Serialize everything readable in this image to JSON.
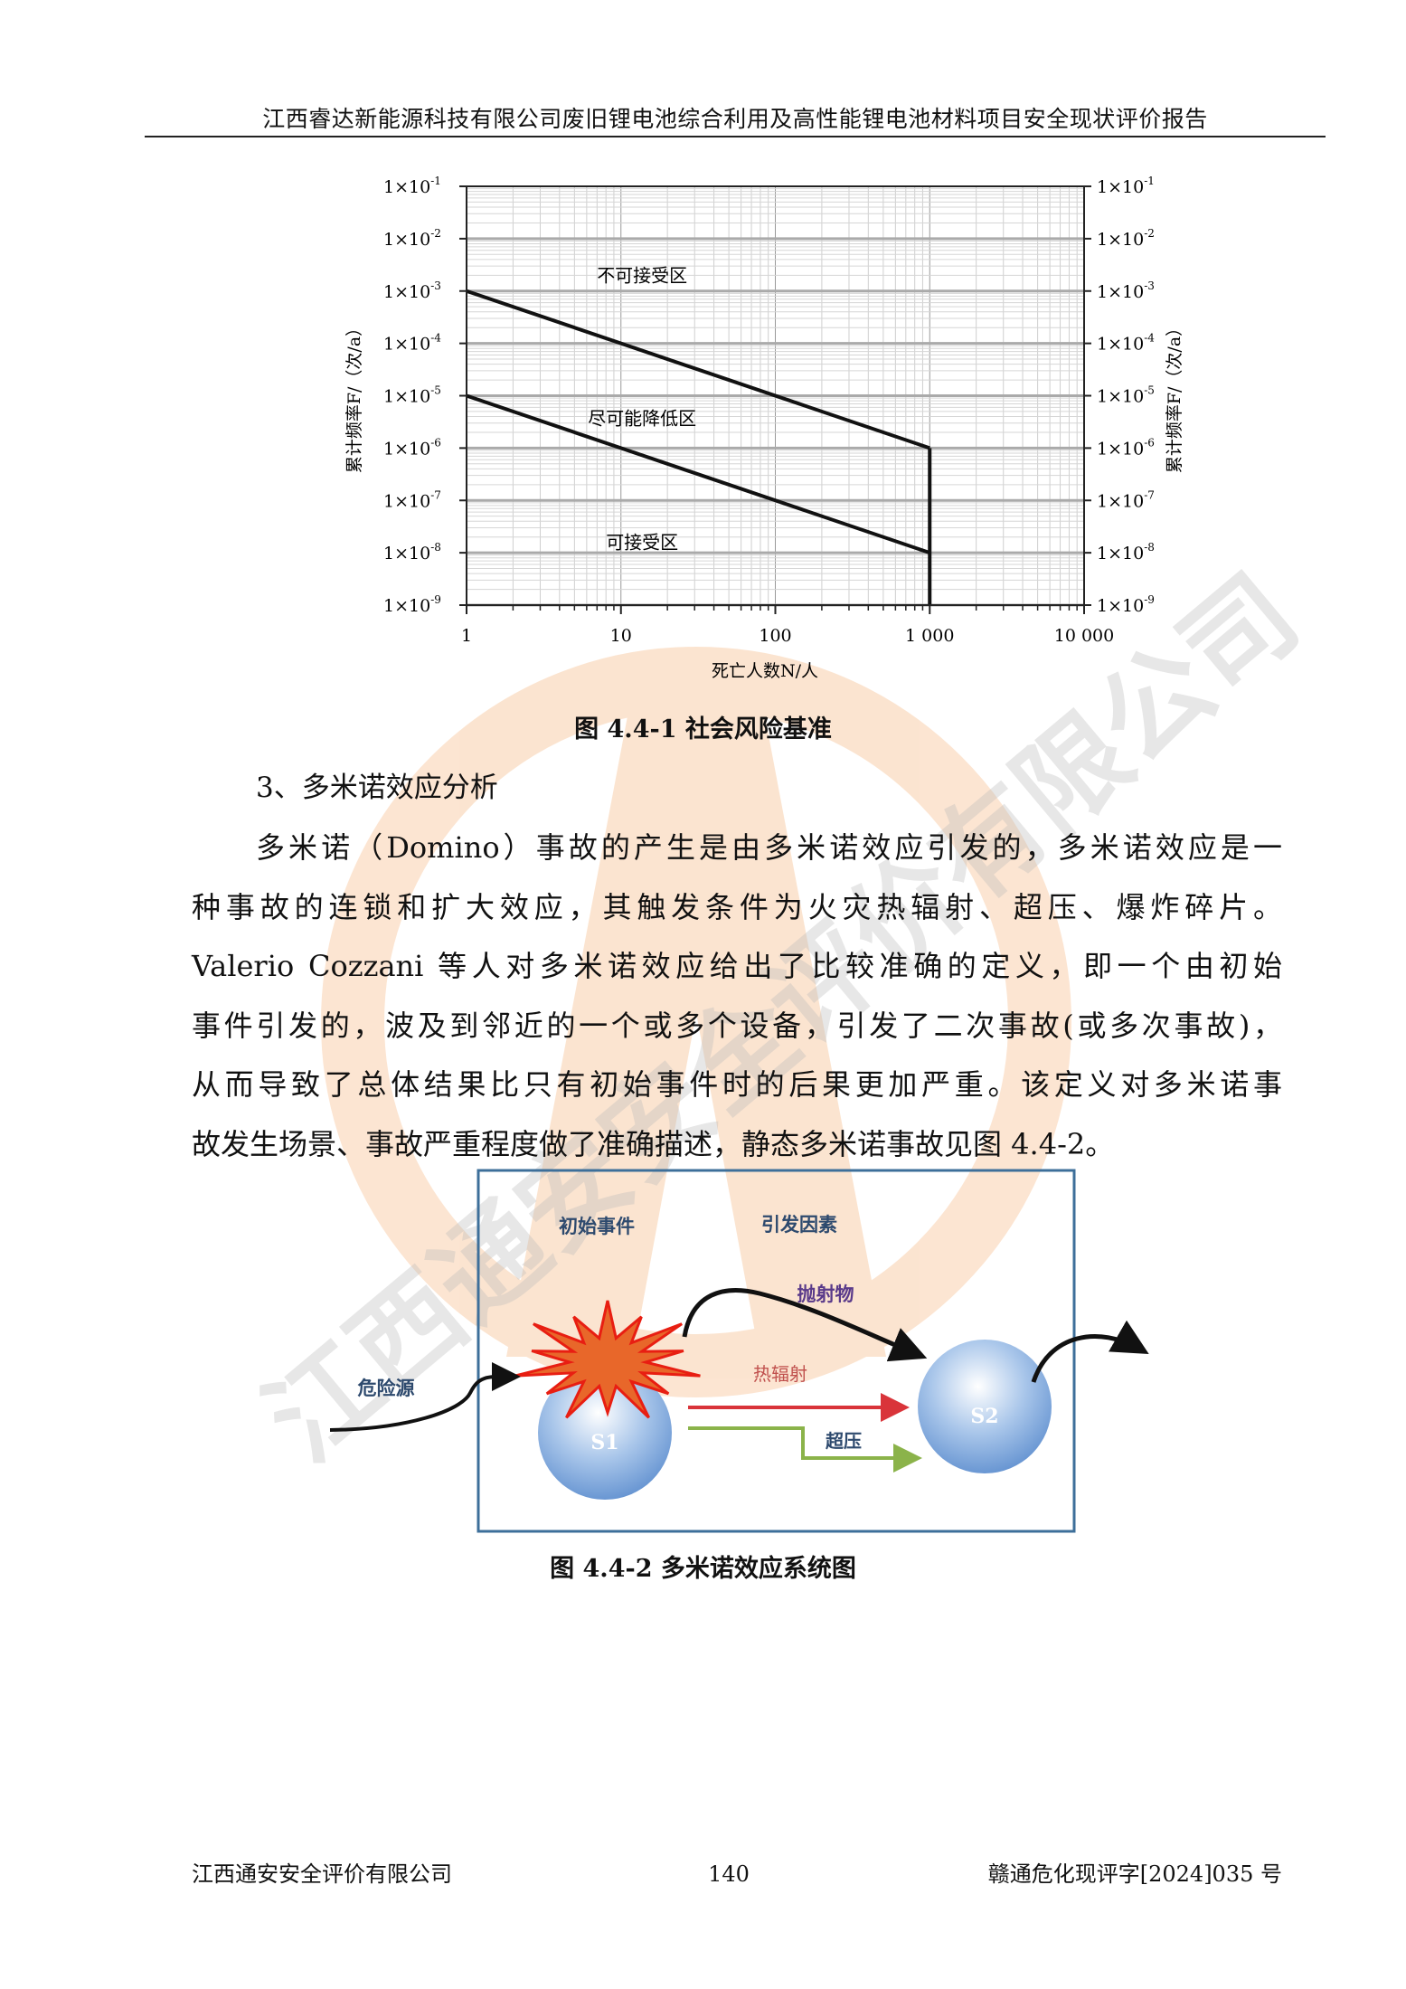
{
  "header": {
    "title": "江西睿达新能源科技有限公司废旧锂电池综合利用及高性能锂电池材料项目安全现状评价报告"
  },
  "chart_data": {
    "type": "line",
    "xscale": "log",
    "yscale": "log",
    "xlim": [
      1,
      10000
    ],
    "ylim": [
      1e-09,
      0.1
    ],
    "xlabel": "死亡人数N/人",
    "ylabel": "累计频率F/（次/a）",
    "ylabel_right": "累计频率F/（次/a）",
    "x_ticks": [
      {
        "value": 1,
        "label": "1"
      },
      {
        "value": 10,
        "label": "10"
      },
      {
        "value": 100,
        "label": "100"
      },
      {
        "value": 1000,
        "label": "1 000"
      },
      {
        "value": 10000,
        "label": "10 000"
      }
    ],
    "y_ticks": [
      {
        "value": 0.1,
        "base": "1×10",
        "exp": "-1"
      },
      {
        "value": 0.01,
        "base": "1×10",
        "exp": "-2"
      },
      {
        "value": 0.001,
        "base": "1×10",
        "exp": "-3"
      },
      {
        "value": 0.0001,
        "base": "1×10",
        "exp": "-4"
      },
      {
        "value": 1e-05,
        "base": "1×10",
        "exp": "-5"
      },
      {
        "value": 1e-06,
        "base": "1×10",
        "exp": "-6"
      },
      {
        "value": 1e-07,
        "base": "1×10",
        "exp": "-7"
      },
      {
        "value": 1e-08,
        "base": "1×10",
        "exp": "-8"
      },
      {
        "value": 1e-09,
        "base": "1×10",
        "exp": "-9"
      }
    ],
    "grid": true,
    "series": [
      {
        "points": [
          [
            1,
            0.001
          ],
          [
            1000,
            1e-06
          ]
        ]
      },
      {
        "points": [
          [
            1,
            1e-05
          ],
          [
            1000,
            1e-08
          ]
        ]
      },
      {
        "points": [
          [
            1000,
            1e-06
          ],
          [
            1000,
            1e-09
          ]
        ]
      }
    ],
    "regions": [
      {
        "label": "不可接受区",
        "x": 8,
        "y": 0.0015
      },
      {
        "label": "尽可能降低区",
        "x": 8,
        "y": 2.8e-06
      },
      {
        "label": "可接受区",
        "x": 8,
        "y": 1.2e-08
      }
    ]
  },
  "figure1_caption": "图 4.4-1   社会风险基准",
  "section_heading": "3、多米诺效应分析",
  "paragraph_lines": [
    "多米诺（Domino）事故的产生是由多米诺效应引发的，多米诺效应是一",
    "种事故的连锁和扩大效应，其触发条件为火灾热辐射、超压、爆炸碎片。",
    "Valerio Cozzani 等人对多米诺效应给出了比较准确的定义，即一个由初始",
    "事件引发的，波及到邻近的一个或多个设备，引发了二次事故(或多次事故)，",
    "从而导致了总体结果比只有初始事件时的后果更加严重。该定义对多米诺事",
    "故发生场景、事故严重程度做了准确描述，静态多米诺事故见图 4.4-2。"
  ],
  "diagram": {
    "initial_event": "初始事件",
    "trigger_factors": "引发因素",
    "projectile": "抛射物",
    "thermal_radiation": "热辐射",
    "overpressure": "超压",
    "hazard_source": "危险源",
    "s1": "S1",
    "s2": "S2",
    "colors": {
      "frame": "#3d6f9a",
      "burst": "#e8672a",
      "burst_edge": "#e81e12",
      "sphere": "#6f9fd8",
      "thermal_arrow": "#d9343a",
      "overpressure_arrow": "#8bb34a",
      "projectile_text": "#5a3a8a",
      "label": "#2e4a6e"
    }
  },
  "figure2_caption": "图 4.4-2   多米诺效应系统图",
  "footer": {
    "company": "江西通安安全评价有限公司",
    "page_number": "140",
    "report_number": "赣通危化现评字[2024]035 号"
  },
  "watermark": {
    "text": "江西通安安全评价有限公司",
    "color": "#f5a050"
  }
}
